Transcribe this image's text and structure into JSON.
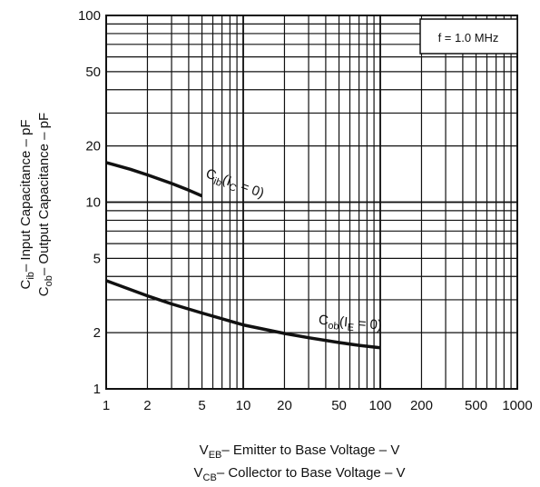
{
  "chart_data": {
    "type": "line",
    "x_scale": "log",
    "y_scale": "log",
    "xlim": [
      1,
      1000
    ],
    "ylim": [
      1,
      100
    ],
    "grid": true,
    "x_ticks": [
      "1",
      "2",
      "5",
      "10",
      "20",
      "50",
      "100",
      "200",
      "500",
      "1000"
    ],
    "y_ticks": [
      "1",
      "2",
      "5",
      "10",
      "20",
      "50",
      "100"
    ],
    "ylabel_lines": [
      {
        "main": "C",
        "sub": "ib",
        "rest": "– Input Capacitance – pF"
      },
      {
        "main": "C",
        "sub": "ob",
        "rest": "– Output Capacitance – pF"
      }
    ],
    "xlabel_lines": [
      {
        "main": "V",
        "sub": "EB",
        "rest": "– Emitter to Base Voltage – V"
      },
      {
        "main": "V",
        "sub": "CB",
        "rest": "– Collector to Base Voltage – V"
      }
    ],
    "annotation": "f = 1.0 MHz",
    "series": [
      {
        "label": {
          "main": "C",
          "sub": "ib",
          "open": "(I",
          "sub2": "C",
          "close": " = 0)"
        },
        "label_at": [
          8.5,
          12
        ],
        "x": [
          1,
          1.5,
          2,
          3,
          4,
          5
        ],
        "y": [
          16.3,
          15.0,
          14.0,
          12.6,
          11.6,
          10.8
        ]
      },
      {
        "label": {
          "main": "C",
          "sub": "ob",
          "open": "(I",
          "sub2": "E",
          "close": " = 0)"
        },
        "label_at": [
          60,
          2.15
        ],
        "x": [
          1,
          2,
          3,
          5,
          10,
          20,
          30,
          50,
          70,
          100
        ],
        "y": [
          3.8,
          3.15,
          2.85,
          2.55,
          2.2,
          1.98,
          1.88,
          1.77,
          1.71,
          1.66
        ]
      }
    ]
  }
}
